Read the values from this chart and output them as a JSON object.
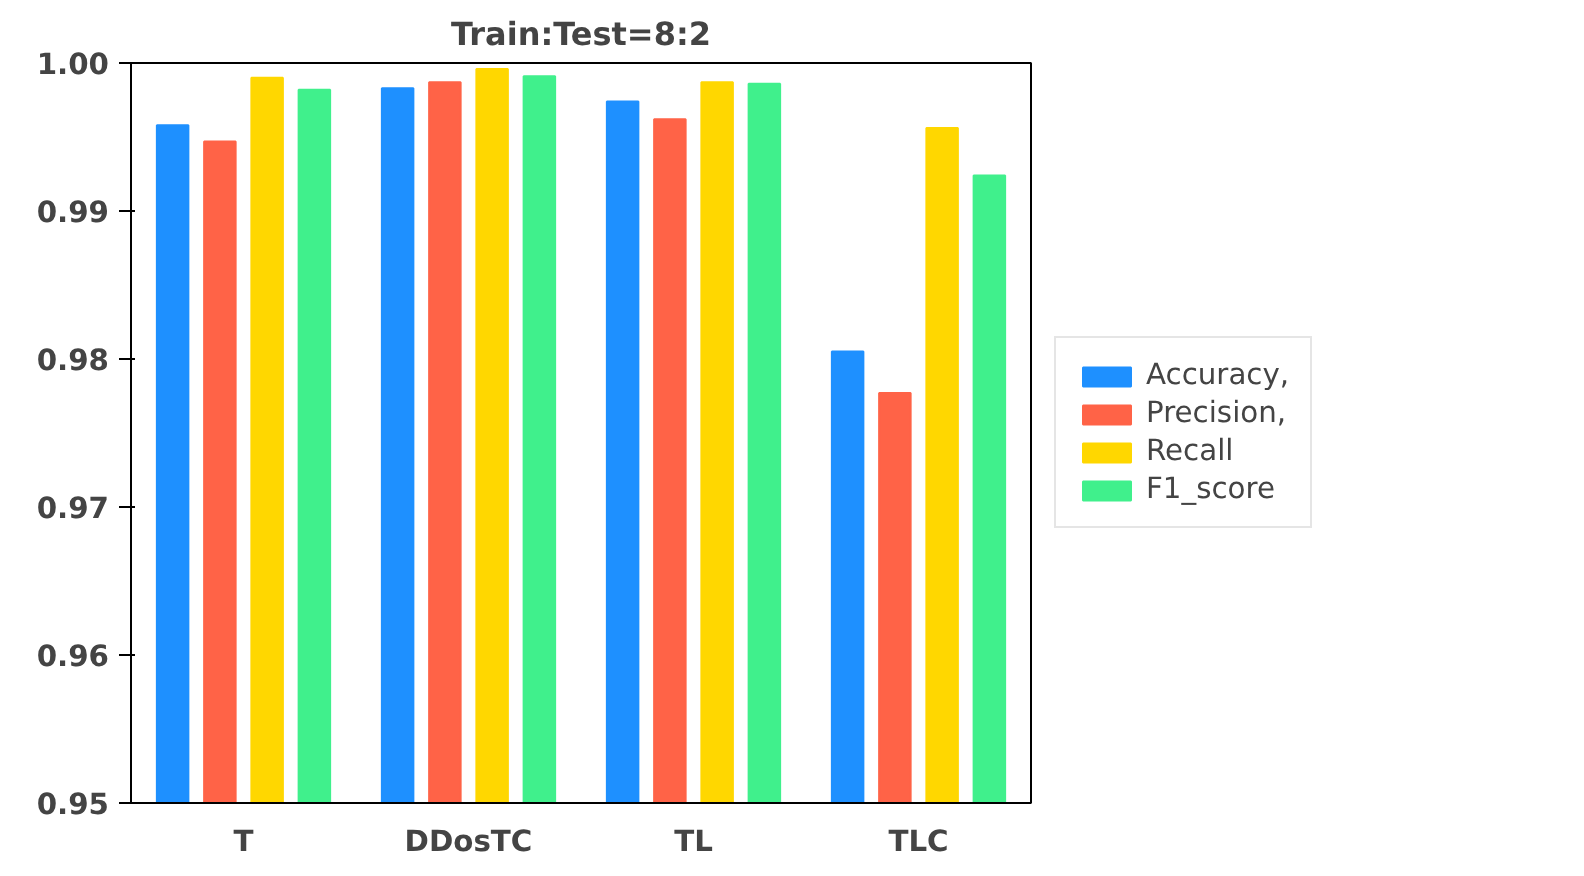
{
  "chart_data": {
    "type": "bar",
    "title": "Train:Test=8:2",
    "categories": [
      "T",
      "DDosTC",
      "TL",
      "TLC"
    ],
    "series": [
      {
        "name": "Accuracy,",
        "color": "#1e90ff",
        "values": [
          0.9958,
          0.9983,
          0.9974,
          0.9805
        ]
      },
      {
        "name": "Precision,",
        "color": "#ff6347",
        "values": [
          0.9947,
          0.9987,
          0.9962,
          0.9777
        ]
      },
      {
        "name": "Recall",
        "color": "#ffd700",
        "values": [
          0.999,
          0.9996,
          0.9987,
          0.9956
        ]
      },
      {
        "name": "F1_score",
        "color": "#40f08c",
        "values": [
          0.9982,
          0.9991,
          0.9986,
          0.9924
        ]
      }
    ],
    "ylim": [
      0.95,
      1.0
    ],
    "yticks": [
      0.95,
      0.96,
      0.97,
      0.98,
      0.99,
      {
        "value": 1.0,
        "label": "1.00"
      }
    ],
    "grid": false,
    "legend": "right"
  }
}
